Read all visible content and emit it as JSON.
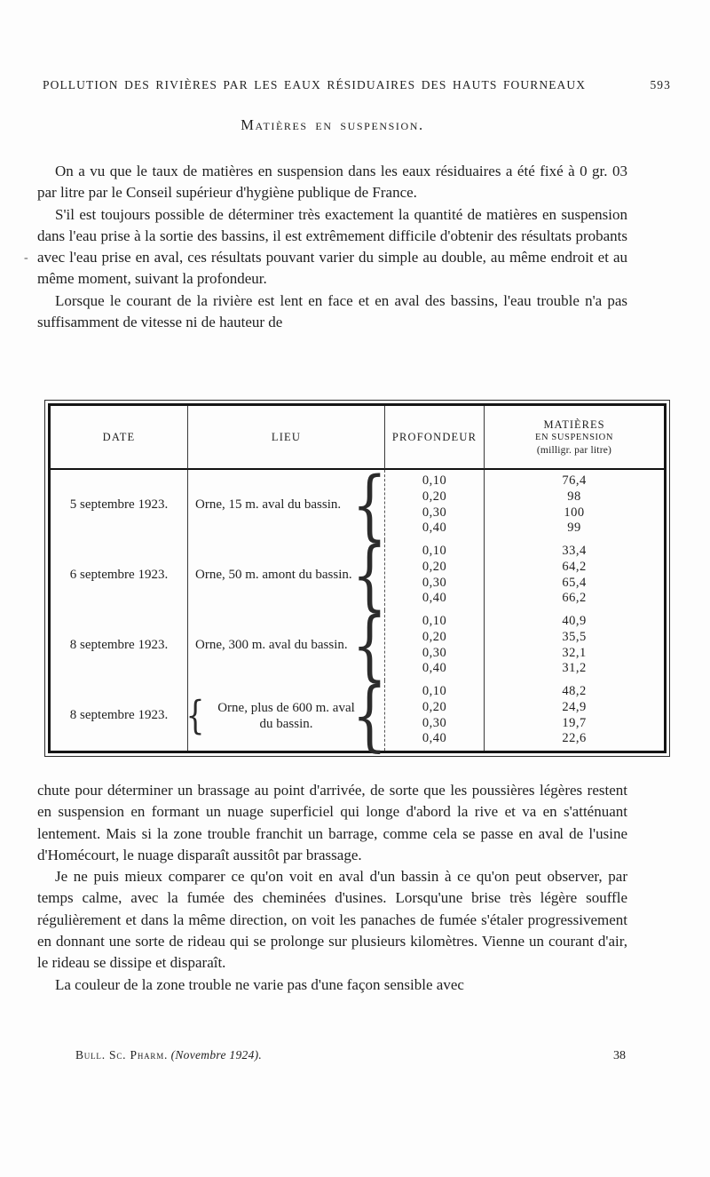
{
  "colors": {
    "ink": "#1f1f1f",
    "paper": "#fdfdfd"
  },
  "running_header": {
    "title": "POLLUTION DES RIVIÈRES PAR LES EAUX RÉSIDUAIRES DES HAUTS FOURNEAUX",
    "page_number": "593"
  },
  "heading": "Matières en suspension.",
  "artifacts": {
    "margin_dash": "-"
  },
  "paragraphs_before_table": [
    "On a vu que le taux de matières en suspension dans les eaux résiduaires a été fixé à 0 gr. 03 par litre par le Conseil supérieur d'hygiène publique de France.",
    "S'il est toujours possible de déterminer très exactement la quantité de matières en suspension dans l'eau prise à la sortie des bassins, il est extrêmement difficile d'obtenir des résultats probants avec l'eau prise en aval, ces résultats pouvant varier du simple au double, au même endroit et au même moment, suivant la profondeur.",
    "Lorsque le courant de la rivière est lent en face et en aval des bassins, l'eau trouble n'a pas suffisamment de vitesse ni de hauteur de"
  ],
  "table": {
    "columns": [
      "DATE",
      "LIEU",
      "PROFONDEUR"
    ],
    "col4": {
      "line1": "MATIÈRES",
      "line2": "EN SUSPENSION",
      "line3": "(milligr. par litre)"
    },
    "brace_glyph": "{",
    "rows": [
      {
        "date": "5 septembre 1923.",
        "lieu": "Orne, 15 m. aval du bassin.",
        "profondeurs": [
          "0,10",
          "0,20",
          "0,30",
          "0,40"
        ],
        "matieres": [
          "76,4",
          "98",
          "100",
          "99"
        ]
      },
      {
        "date": "6 septembre 1923.",
        "lieu": "Orne, 50 m. amont du bassin.",
        "profondeurs": [
          "0,10",
          "0,20",
          "0,30",
          "0,40"
        ],
        "matieres": [
          "33,4",
          "64,2",
          "65,4",
          "66,2"
        ]
      },
      {
        "date": "8 septembre 1923.",
        "lieu": "Orne, 300 m. aval du bassin.",
        "profondeurs": [
          "0,10",
          "0,20",
          "0,30",
          "0,40"
        ],
        "matieres": [
          "40,9",
          "35,5",
          "32,1",
          "31,2"
        ]
      },
      {
        "date": "8 septembre 1923.",
        "lieu": "Orne, plus de 600 m. aval du bassin.",
        "profondeurs": [
          "0,10",
          "0,20",
          "0,30",
          "0,40"
        ],
        "matieres": [
          "48,2",
          "24,9",
          "19,7",
          "22,6"
        ]
      }
    ]
  },
  "paragraphs_after_table": [
    "chute pour déterminer un brassage au point d'arrivée, de sorte que les poussières légères restent en suspension en formant un nuage superficiel qui longe d'abord la rive et va en s'atténuant lentement. Mais si la zone trouble franchit un barrage, comme cela se passe en aval de l'usine d'Homécourt, le nuage disparaît aussitôt par brassage.",
    "Je ne puis mieux comparer ce qu'on voit en aval d'un bassin à ce qu'on peut observer, par temps calme, avec la fumée des cheminées d'usines. Lorsqu'une brise très légère souffle régulièrement et dans la même direction, on voit les panaches de fumée s'étaler progressivement en donnant une sorte de rideau qui se prolonge sur plusieurs kilomètres. Vienne un courant d'air, le rideau se dissipe et disparaît.",
    "La couleur de la zone trouble ne varie pas d'une façon sensible avec"
  ],
  "footer": {
    "journal": "Bull. Sc. Pharm.",
    "issue": "(Novembre 1924).",
    "page_number": "38"
  }
}
